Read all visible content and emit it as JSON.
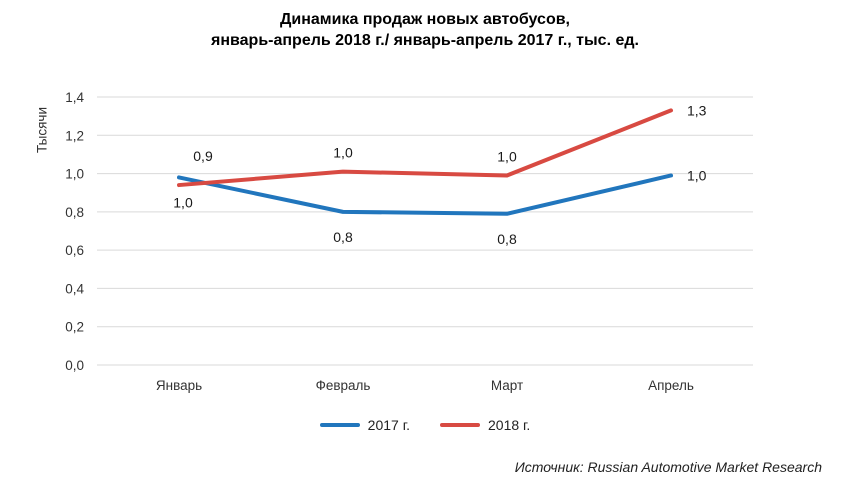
{
  "title_lines": [
    "Динамика продаж новых автобусов,",
    "январь-апрель 2018 г./ январь-апрель 2017 г., тыс. ед."
  ],
  "source": "Источник: Russian Automotive Market Research",
  "colors": {
    "grid": "#D9D9D9",
    "axis_text": "#333333",
    "label_text": "#1A1A1A",
    "series_2017": "#2176BD",
    "series_2018": "#D84A42"
  },
  "chart_data": {
    "type": "line",
    "title": "Динамика продаж новых автобусов, январь-апрель 2018 г./ январь-апрель 2017 г., тыс. ед.",
    "ylabel": "Тысячи",
    "xlabel": "",
    "categories": [
      "Январь",
      "Февраль",
      "Март",
      "Апрель"
    ],
    "ylim": [
      0,
      1.4
    ],
    "grid": true,
    "legend_position": "bottom",
    "yticks": [
      {
        "value": 0.0,
        "label": "0,0"
      },
      {
        "value": 0.2,
        "label": "0,2"
      },
      {
        "value": 0.4,
        "label": "0,4"
      },
      {
        "value": 0.6,
        "label": "0,6"
      },
      {
        "value": 0.8,
        "label": "0,8"
      },
      {
        "value": 1.0,
        "label": "1,0"
      },
      {
        "value": 1.2,
        "label": "1,2"
      },
      {
        "value": 1.4,
        "label": "1,4"
      }
    ],
    "series": [
      {
        "name": "2017 г.",
        "color": "#2176BD",
        "values": [
          0.98,
          0.8,
          0.79,
          0.99
        ],
        "labels": [
          "1,0",
          "0,8",
          "0,8",
          "1,0"
        ],
        "label_positions": [
          {
            "pos": "below",
            "dx": 4
          },
          {
            "pos": "below"
          },
          {
            "pos": "below"
          },
          {
            "pos": "right"
          }
        ]
      },
      {
        "name": "2018 г.",
        "color": "#D84A42",
        "values": [
          0.94,
          1.01,
          0.99,
          1.33
        ],
        "labels": [
          "0,9",
          "1,0",
          "1,0",
          "1,3"
        ],
        "label_positions": [
          {
            "pos": "above",
            "dx": 24,
            "dy": -10
          },
          {
            "pos": "above"
          },
          {
            "pos": "above"
          },
          {
            "pos": "right"
          }
        ]
      }
    ]
  }
}
